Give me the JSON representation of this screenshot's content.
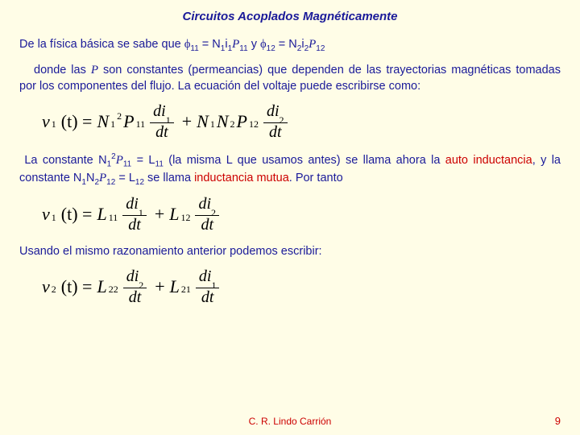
{
  "title": "Circuitos Acoplados Magnéticamente",
  "p1_a": "De la física básica se sabe que ",
  "p1_b": " = N",
  "p1_c": "i",
  "p1_d": " y ",
  "p1_e": " = N",
  "p1_f": "i",
  "phi11_sub": "11",
  "phi12_sub": "12",
  "n1": "1",
  "n2": "2",
  "p11": "11",
  "p12": "12",
  "p2_a": "donde las ",
  "p2_b": " son constantes (permeancias) que dependen de las trayectorias magnéticas tomadas por los componentes del flujo. La ecuación del voltaje puede escribirse como:",
  "p_symbol": "P",
  "p3_a": "La constante N",
  "p3_b": " = L",
  "p3_c": " (la misma L que usamos antes) se llama ahora la ",
  "p3_d": "auto inductancia",
  "p3_e": ", y la constante N",
  "p3_f": "N",
  "p3_g": " = L",
  "p3_h": " se llama ",
  "p3_i": "inductancia mutua",
  "p3_j": ". Por tanto",
  "l11": "11",
  "l12": "12",
  "sq": "2",
  "p4": "Usando el mismo razonamiento anterior podemos escribir:",
  "eq1": {
    "lhs": "v",
    "lhs_sub": "1",
    "t": "(t) =",
    "coef1a": "N",
    "coef1a_sub": "1",
    "coef1a_sup": "2",
    "coef1b": "P",
    "coef1b_sub": "11",
    "num1": "di",
    "num1_sub": "1",
    "den1": "dt",
    "plus": "+",
    "coef2a": "N",
    "coef2a_sub": "1",
    "coef2b": "N",
    "coef2b_sub": "2",
    "coef2c": "P",
    "coef2c_sub": "12",
    "num2": "di",
    "num2_sub": "2",
    "den2": "dt"
  },
  "eq2": {
    "lhs": "v",
    "lhs_sub": "1",
    "t": "(t) =",
    "c1": "L",
    "c1_sub": "11",
    "num1": "di",
    "num1_sub": "1",
    "den1": "dt",
    "plus": "+",
    "c2": "L",
    "c2_sub": "12",
    "num2": "di",
    "num2_sub": "2",
    "den2": "dt"
  },
  "eq3": {
    "lhs": "v",
    "lhs_sub": "2",
    "t": "(t) =",
    "c1": "L",
    "c1_sub": "22",
    "num1": "di",
    "num1_sub": "2",
    "den1": "dt",
    "plus": "+",
    "c2": "L",
    "c2_sub": "21",
    "num2": "di",
    "num2_sub": "1",
    "den2": "dt"
  },
  "footer_author": "C. R. Lindo Carrión",
  "page_number": "9"
}
